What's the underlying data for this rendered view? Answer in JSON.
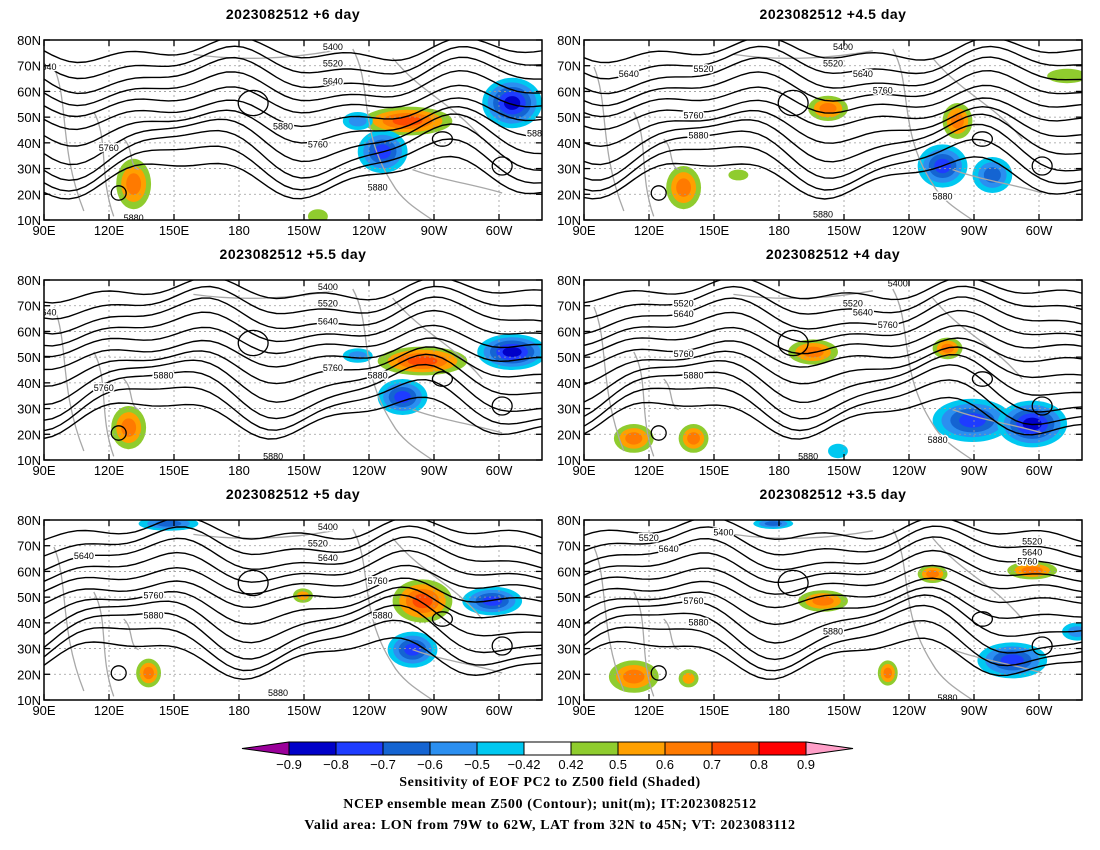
{
  "panels": [
    {
      "title": "2023082512 +6 day",
      "left_col": true,
      "contour_labels": [
        "5400",
        "5520",
        "5640",
        "5760",
        "5880",
        "5760",
        "5880",
        "5880",
        "5880",
        "640"
      ]
    },
    {
      "title": "2023082512 +4.5 day",
      "left_col": false,
      "contour_labels": [
        "5400",
        "5520",
        "5640",
        "5520",
        "5640",
        "5760",
        "5760",
        "5880",
        "5880",
        "5880"
      ]
    },
    {
      "title": "2023082512 +5.5 day",
      "left_col": true,
      "contour_labels": [
        "5400",
        "5520",
        "5640",
        "5760",
        "5880",
        "5760",
        "5880",
        "5880",
        "640"
      ]
    },
    {
      "title": "2023082512 +4 day",
      "left_col": false,
      "contour_labels": [
        "5400",
        "5520",
        "5640",
        "5520",
        "5640",
        "5760",
        "5760",
        "5880",
        "5880",
        "5880"
      ]
    },
    {
      "title": "2023082512 +5 day",
      "left_col": true,
      "contour_labels": [
        "5400",
        "5520",
        "5640",
        "5640",
        "5760",
        "5760",
        "5880",
        "5880",
        "5880"
      ]
    },
    {
      "title": "2023082512 +3.5 day",
      "left_col": false,
      "contour_labels": [
        "5400",
        "5520",
        "5640",
        "5520",
        "5640",
        "5760",
        "5760",
        "5880",
        "5880",
        "5880"
      ]
    }
  ],
  "axes": {
    "lat_labels": [
      "80N",
      "70N",
      "60N",
      "50N",
      "40N",
      "30N",
      "20N",
      "10N"
    ],
    "lon_labels": [
      "90E",
      "120E",
      "150E",
      "180",
      "150W",
      "120W",
      "90W",
      "60W"
    ]
  },
  "colorbar": {
    "colors": [
      "#9a009a",
      "#0000c8",
      "#1e3cff",
      "#1464d2",
      "#2b8ff0",
      "#00c8f0",
      "#ffffff",
      "#8fcc2e",
      "#ffa000",
      "#ff7a00",
      "#ff4a00",
      "#ff0000",
      "#ff9fc8"
    ],
    "labels": [
      "−0.9",
      "−0.8",
      "−0.7",
      "−0.6",
      "−0.5",
      "−0.42",
      "0.42",
      "0.5",
      "0.6",
      "0.7",
      "0.8",
      "0.9"
    ]
  },
  "captions": [
    "Sensitivity of EOF PC2 to Z500 field (Shaded)",
    "NCEP ensemble mean Z500 (Contour); unit(m); IT:2023082512",
    "Valid area: LON from 79W to 62W, LAT from 32N to 45N; VT: 2023083112"
  ]
}
